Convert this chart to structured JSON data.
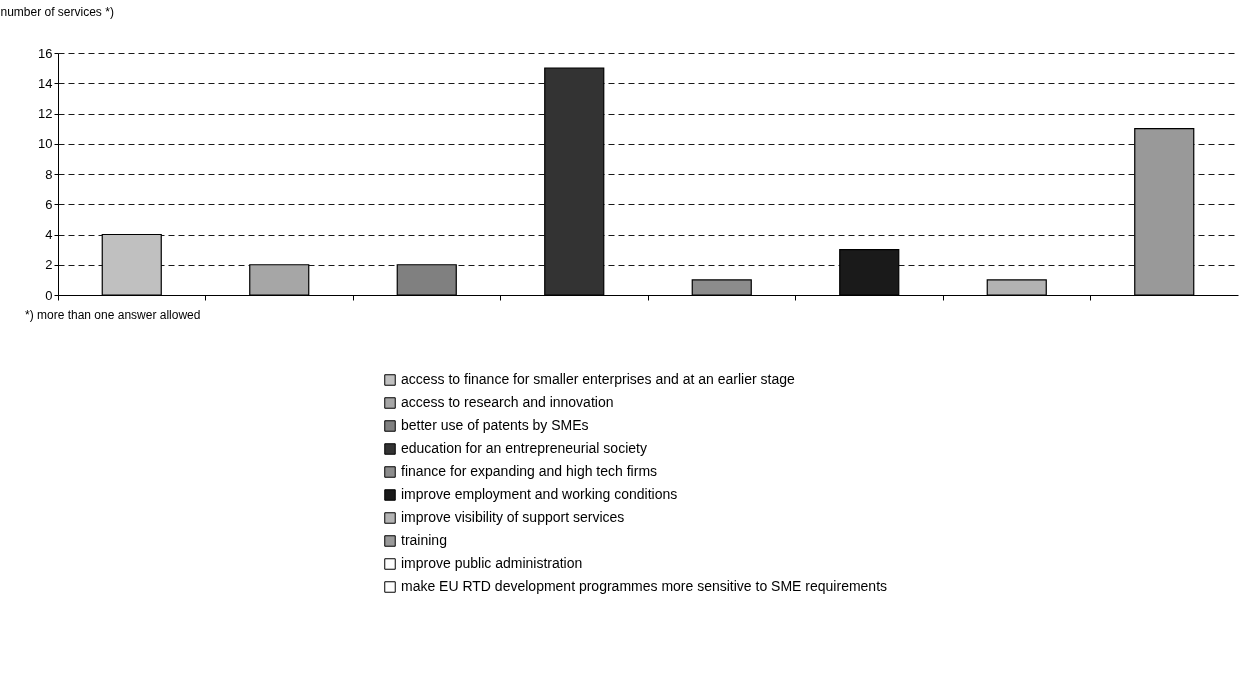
{
  "chart_data": {
    "type": "bar",
    "ylabel": "number of services *)",
    "categories": [
      null,
      null,
      null,
      null,
      null,
      null,
      null,
      null
    ],
    "series": [
      {
        "name": "access to finance for smaller enterprises and at an earlier stage",
        "color": "#c0c0c0",
        "values": [
          4,
          null,
          null,
          null,
          null,
          null,
          null,
          null
        ]
      },
      {
        "name": "access to research and innovation",
        "color": "#a6a6a6",
        "values": [
          null,
          2,
          null,
          null,
          null,
          null,
          null,
          null
        ]
      },
      {
        "name": "better use of patents by SMEs",
        "color": "#808080",
        "values": [
          null,
          null,
          2,
          null,
          null,
          null,
          null,
          null
        ]
      },
      {
        "name": "education for an entrepreneurial society",
        "color": "#333333",
        "values": [
          null,
          null,
          null,
          15,
          null,
          null,
          null,
          null
        ]
      },
      {
        "name": "finance for expanding and high tech firms",
        "color": "#8c8c8c",
        "values": [
          null,
          null,
          null,
          null,
          1,
          null,
          null,
          null
        ]
      },
      {
        "name": "improve employment and working conditions",
        "color": "#1a1a1a",
        "values": [
          null,
          null,
          null,
          null,
          null,
          3,
          null,
          null
        ]
      },
      {
        "name": "improve visibility of support services",
        "color": "#b3b3b3",
        "values": [
          null,
          null,
          null,
          null,
          null,
          null,
          1,
          null
        ]
      },
      {
        "name": "training",
        "color": "#999999",
        "values": [
          null,
          null,
          null,
          null,
          null,
          null,
          null,
          11
        ]
      },
      {
        "name": "improve public administration",
        "color": "#ffffff",
        "values": [
          null,
          null,
          null,
          null,
          null,
          null,
          null,
          null
        ]
      },
      {
        "name": "make EU RTD development programmes more sensitive to SME requirements",
        "color": "#fefefe",
        "values": [
          null,
          null,
          null,
          null,
          null,
          null,
          null,
          null
        ]
      }
    ],
    "ylim": [
      0,
      16
    ],
    "yticks": [
      0,
      2,
      4,
      6,
      8,
      10,
      12,
      14,
      16
    ],
    "grid": "y",
    "legend": "bottom",
    "tick_labels": "y",
    "annotations": [
      "*) more than one answer allowed"
    ]
  }
}
